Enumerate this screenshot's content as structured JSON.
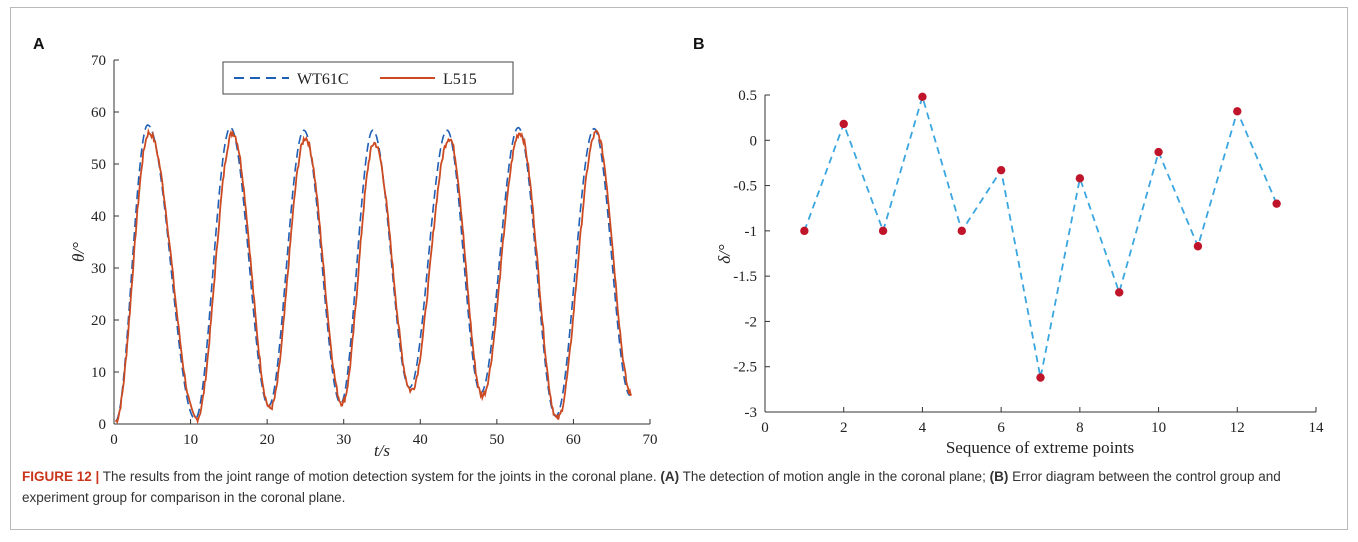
{
  "caption": {
    "figure_label": "FIGURE 12 |",
    "text_main": " The results from the joint range of motion detection system for the joints in the coronal plane. ",
    "part_a_label": "(A)",
    "part_a_text": " The detection of motion angle in the coronal plane; ",
    "part_b_label": "(B)",
    "part_b_text": " Error diagram between the control group and experiment group for comparison in the coronal plane."
  },
  "colors": {
    "wt61c": "#1f5fb5",
    "l515": "#cc4a22",
    "error_line": "#3aa6e0",
    "error_marker": "#c0142a",
    "caption_accent": "#c9361c"
  },
  "chart_data": [
    {
      "panel": "A",
      "type": "line",
      "xlabel": "t/s",
      "ylabel": "θ/°",
      "xlim": [
        0,
        70
      ],
      "ylim": [
        0,
        70
      ],
      "xticks": [
        "0",
        "10",
        "20",
        "30",
        "40",
        "50",
        "60",
        "70"
      ],
      "yticks": [
        "0",
        "10",
        "20",
        "30",
        "40",
        "50",
        "60",
        "70"
      ],
      "legend_position": "top-center",
      "series": [
        {
          "name": "WT61C",
          "style": "dashed",
          "peaks": [
            [
              4.4,
              57.5
            ],
            [
              15.2,
              57.0
            ],
            [
              24.8,
              56.5
            ],
            [
              33.8,
              56.5
            ],
            [
              43.5,
              56.5
            ],
            [
              52.8,
              57.0
            ],
            [
              62.7,
              56.8
            ]
          ],
          "troughs": [
            [
              0.2,
              0.5
            ],
            [
              10.6,
              1.0
            ],
            [
              20.2,
              3.5
            ],
            [
              29.6,
              4.0
            ],
            [
              38.6,
              7.0
            ],
            [
              47.9,
              6.0
            ],
            [
              57.7,
              1.5
            ],
            [
              67.4,
              5.5
            ]
          ]
        },
        {
          "name": "L515",
          "style": "solid",
          "peaks": [
            [
              4.6,
              56.0
            ],
            [
              15.5,
              56.0
            ],
            [
              25.0,
              55.0
            ],
            [
              34.0,
              54.0
            ],
            [
              43.8,
              55.0
            ],
            [
              53.0,
              56.0
            ],
            [
              63.0,
              56.0
            ]
          ],
          "troughs": [
            [
              0.2,
              0.5
            ],
            [
              10.8,
              1.0
            ],
            [
              20.4,
              3.0
            ],
            [
              29.8,
              4.0
            ],
            [
              38.8,
              6.5
            ],
            [
              48.1,
              5.5
            ],
            [
              57.9,
              1.0
            ],
            [
              67.6,
              5.5
            ]
          ]
        }
      ]
    },
    {
      "panel": "B",
      "type": "line",
      "xlabel": "Sequence of extreme points",
      "ylabel": "δ/°",
      "xlim": [
        0,
        14
      ],
      "ylim": [
        -3,
        0.5
      ],
      "xticks": [
        "0",
        "2",
        "4",
        "6",
        "8",
        "10",
        "12",
        "14"
      ],
      "yticks": [
        "0.5",
        "0",
        "-0.5",
        "-1",
        "-1.5",
        "-2",
        "-2.5",
        "-3"
      ],
      "x": [
        1,
        2,
        3,
        4,
        5,
        6,
        7,
        8,
        9,
        10,
        11,
        12,
        13
      ],
      "y": [
        -1.0,
        0.18,
        -1.0,
        0.48,
        -1.0,
        -0.33,
        -2.62,
        -0.42,
        -1.68,
        -0.13,
        -1.17,
        0.32,
        -0.7
      ]
    }
  ]
}
